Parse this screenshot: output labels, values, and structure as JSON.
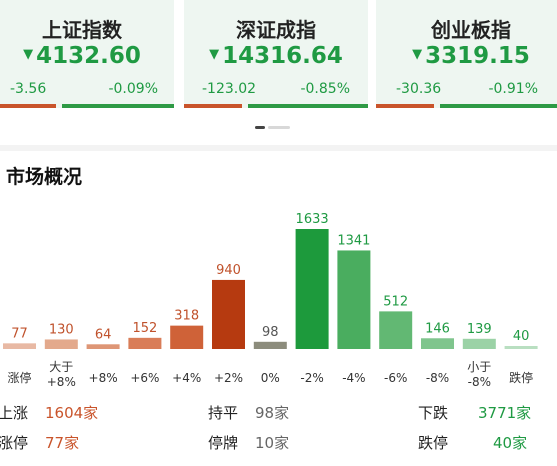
{
  "indices": [
    {
      "name": "上证指数",
      "price": "4132.60",
      "change": "-3.56",
      "pct": "-0.09%",
      "arrow": "▼"
    },
    {
      "name": "深证成指",
      "price": "14316.64",
      "change": "-123.02",
      "pct": "-0.85%",
      "arrow": "▼"
    },
    {
      "name": "创业板指",
      "price": "3319.15",
      "change": "-30.36",
      "pct": "-0.91%",
      "arrow": "▼"
    }
  ],
  "section_title": "市场概况",
  "chart_data": {
    "type": "bar",
    "categories": [
      [
        "涨停"
      ],
      [
        "大于",
        "+8%"
      ],
      [
        "+8%"
      ],
      [
        "+6%"
      ],
      [
        "+4%"
      ],
      [
        "+2%"
      ],
      [
        "0%"
      ],
      [
        "-2%"
      ],
      [
        "-4%"
      ],
      [
        "-6%"
      ],
      [
        "-8%"
      ],
      [
        "小于",
        "-8%"
      ],
      [
        "跌停"
      ]
    ],
    "values": [
      77,
      130,
      64,
      152,
      318,
      940,
      98,
      1633,
      1341,
      512,
      146,
      139,
      40
    ],
    "label_colors": [
      "#c0522c",
      "#c0522c",
      "#c0522c",
      "#c0522c",
      "#c0522c",
      "#c0522c",
      "#555555",
      "#1f9a43",
      "#1f9a43",
      "#1f9a43",
      "#1f9a43",
      "#1f9a43",
      "#1f9a43"
    ],
    "bar_colors": [
      "#e8b9a4",
      "#e3a98c",
      "#de9676",
      "#d97d58",
      "#cf6238",
      "#b63a10",
      "#8c8c7c",
      "#1d9a3c",
      "#4aad5f",
      "#62b873",
      "#7fc58d",
      "#9bd2a6",
      "#b9dfc1"
    ]
  },
  "stats": {
    "up_label": "上涨",
    "up_value": "1604家",
    "flat_label": "持平",
    "flat_value": "98家",
    "down_label": "下跌",
    "down_value": "3771家",
    "limit_up_label": "涨停",
    "limit_up_value": "77家",
    "halt_label": "停牌",
    "halt_value": "10家",
    "limit_down_label": "跌停",
    "limit_down_value": "40家"
  },
  "colors": {
    "red": "#c9542b",
    "green": "#1f9a43",
    "card_bg": "#eef6f1"
  }
}
